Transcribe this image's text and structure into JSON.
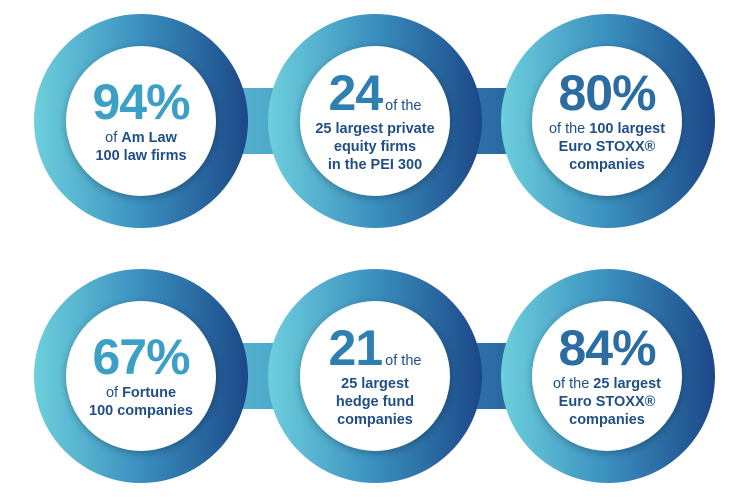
{
  "rows": [
    {
      "items": [
        {
          "value": "94%",
          "l1_pre": "of ",
          "l1_bold": "Am Law",
          "l2": "100 law firms",
          "l3": "",
          "l4": ""
        },
        {
          "value": "24",
          "suffix": "of the",
          "l1": "25 largest private",
          "l2": "equity firms",
          "l3": "in the PEI 300"
        },
        {
          "value": "80%",
          "l1_pre": "of the ",
          "l1_bold": "100 largest",
          "l2": "Euro STOXX®",
          "l3": "companies"
        }
      ]
    },
    {
      "items": [
        {
          "value": "67%",
          "l1_pre": "of ",
          "l1_bold": "Fortune",
          "l2": "100 companies"
        },
        {
          "value": "21",
          "suffix": "of the",
          "l1": "25 largest",
          "l2": "hedge fund",
          "l3": "companies"
        },
        {
          "value": "84%",
          "l1_pre": "of the ",
          "l1_bold": "25 largest",
          "l2": "Euro STOXX®",
          "l3": "companies"
        }
      ]
    }
  ],
  "colors": {
    "teal": "#63c6d6",
    "mid": "#3a8fbf",
    "navy": "#1c4c86",
    "text": "#1f4f86"
  }
}
